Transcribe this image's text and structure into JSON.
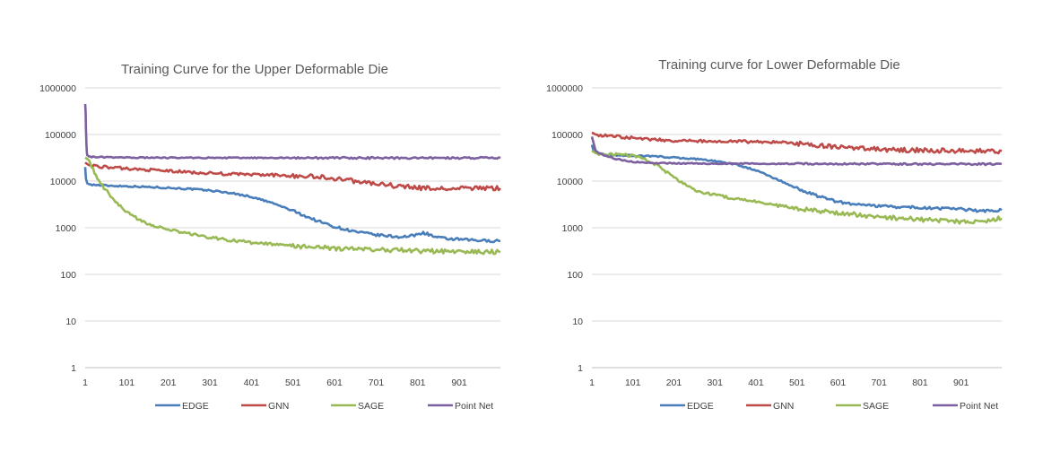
{
  "charts": [
    {
      "panel_id": "panel-upper",
      "chart_data": {
        "type": "line",
        "title": "Training Curve for the Upper Deformable Die",
        "xlabel": "",
        "ylabel": "",
        "y_scale": "log",
        "ylim": [
          1,
          1000000
        ],
        "y_ticks": [
          1,
          10,
          100,
          1000,
          10000,
          100000,
          1000000
        ],
        "y_tick_labels": [
          "1",
          "10",
          "100",
          "1000",
          "10000",
          "100000",
          "1000000"
        ],
        "xlim": [
          1,
          1000
        ],
        "x_ticks": [
          1,
          101,
          201,
          301,
          401,
          501,
          601,
          701,
          801,
          901
        ],
        "x_tick_labels": [
          "1",
          "101",
          "201",
          "301",
          "401",
          "501",
          "601",
          "701",
          "801",
          "901"
        ],
        "grid": "horizontal",
        "legend": "bottom",
        "series": [
          {
            "name": "EDGE",
            "color": "#4a7ebb",
            "x": [
              1,
              3,
              6,
              10,
              30,
              60,
              101,
              151,
              201,
              251,
              301,
              351,
              401,
              451,
              501,
              551,
              601,
              651,
              701,
              751,
              781,
              801,
              811,
              821,
              831,
              841,
              851,
              871,
              901,
              951,
              1000
            ],
            "y": [
              20000,
              11000,
              9000,
              8600,
              8200,
              8000,
              7800,
              7500,
              7200,
              6800,
              6300,
              5600,
              4600,
              3400,
              2300,
              1500,
              1050,
              820,
              700,
              640,
              650,
              720,
              780,
              760,
              700,
              640,
              610,
              580,
              560,
              530,
              520
            ]
          },
          {
            "name": "GNN",
            "color": "#be4b48",
            "x": [
              1,
              10,
              50,
              101,
              151,
              201,
              251,
              301,
              351,
              401,
              451,
              501,
              551,
              601,
              651,
              701,
              751,
              801,
              851,
              901,
              951,
              1000
            ],
            "y": [
              25000,
              22000,
              20000,
              18500,
              17500,
              16500,
              15500,
              14800,
              14200,
              13800,
              13500,
              13000,
              12500,
              11500,
              10000,
              8800,
              7800,
              7200,
              6800,
              7000,
              7100,
              7000
            ]
          },
          {
            "name": "SAGE",
            "color": "#98b954",
            "x": [
              1,
              10,
              20,
              30,
              50,
              70,
              90,
              110,
              130,
              160,
              201,
              251,
              301,
              351,
              401,
              451,
              501,
              551,
              601,
              651,
              701,
              751,
              801,
              851,
              901,
              951,
              1000
            ],
            "y": [
              32000,
              28000,
              18000,
              11000,
              6500,
              4000,
              2600,
              1900,
              1500,
              1150,
              900,
              750,
              620,
              540,
              480,
              440,
              410,
              380,
              360,
              350,
              340,
              330,
              320,
              315,
              310,
              305,
              300
            ]
          },
          {
            "name": "Point Net",
            "color": "#7d60a0",
            "x": [
              1,
              2,
              3,
              4,
              5,
              6,
              8,
              10,
              20,
              50,
              101,
              201,
              301,
              401,
              501,
              601,
              701,
              801,
              901,
              1000
            ],
            "y": [
              450000,
              300000,
              120000,
              60000,
              40000,
              36000,
              35000,
              34000,
              33000,
              32500,
              32000,
              31800,
              31600,
              31500,
              31500,
              31400,
              31400,
              31300,
              31300,
              31300
            ]
          }
        ]
      }
    },
    {
      "panel_id": "panel-lower",
      "chart_data": {
        "type": "line",
        "title": "Training curve for Lower Deformable Die",
        "xlabel": "",
        "ylabel": "",
        "y_scale": "log",
        "ylim": [
          1,
          1000000
        ],
        "y_ticks": [
          1,
          10,
          100,
          1000,
          10000,
          100000,
          1000000
        ],
        "y_tick_labels": [
          "1",
          "10",
          "100",
          "1000",
          "10000",
          "100000",
          "1000000"
        ],
        "xlim": [
          1,
          1000
        ],
        "x_ticks": [
          1,
          101,
          201,
          301,
          401,
          501,
          601,
          701,
          801,
          901
        ],
        "x_tick_labels": [
          "1",
          "101",
          "201",
          "301",
          "401",
          "501",
          "601",
          "701",
          "801",
          "901"
        ],
        "grid": "horizontal",
        "legend": "bottom",
        "series": [
          {
            "name": "EDGE",
            "color": "#4a7ebb",
            "x": [
              1,
              5,
              20,
              50,
              101,
              151,
              201,
              251,
              301,
              351,
              401,
              451,
              501,
              551,
              601,
              651,
              701,
              751,
              801,
              851,
              901,
              951,
              1000
            ],
            "y": [
              60000,
              45000,
              38000,
              36000,
              35000,
              34000,
              32000,
              30000,
              27000,
              23000,
              17000,
              11000,
              7000,
              4800,
              3600,
              3100,
              2900,
              2800,
              2700,
              2600,
              2500,
              2300,
              2400
            ]
          },
          {
            "name": "GNN",
            "color": "#be4b48",
            "x": [
              1,
              10,
              50,
              101,
              151,
              201,
              251,
              301,
              351,
              401,
              451,
              501,
              551,
              601,
              651,
              701,
              751,
              801,
              851,
              901,
              951,
              1000
            ],
            "y": [
              110000,
              100000,
              92000,
              85000,
              78000,
              74000,
              72000,
              71000,
              71000,
              70000,
              68000,
              64000,
              58000,
              53000,
              50000,
              48000,
              47000,
              46000,
              45500,
              45000,
              44500,
              44000
            ]
          },
          {
            "name": "SAGE",
            "color": "#98b954",
            "x": [
              1,
              10,
              30,
              60,
              101,
              131,
              161,
              201,
              231,
              261,
              301,
              351,
              401,
              451,
              501,
              551,
              601,
              651,
              701,
              751,
              801,
              851,
              901,
              951,
              1000
            ],
            "y": [
              45000,
              40000,
              38000,
              37000,
              35000,
              30000,
              22000,
              12000,
              8000,
              6000,
              5000,
              4200,
              3600,
              3000,
              2600,
              2300,
              2100,
              1900,
              1700,
              1600,
              1500,
              1400,
              1350,
              1350,
              1600
            ]
          },
          {
            "name": "Point Net",
            "color": "#7d60a0",
            "x": [
              1,
              10,
              30,
              60,
              101,
              151,
              201,
              301,
              401,
              501,
              601,
              701,
              801,
              901,
              1000
            ],
            "y": [
              90000,
              45000,
              35000,
              30000,
              26000,
              24500,
              24000,
              23800,
              23800,
              23600,
              23500,
              23400,
              23300,
              23200,
              23200
            ]
          }
        ]
      }
    }
  ]
}
